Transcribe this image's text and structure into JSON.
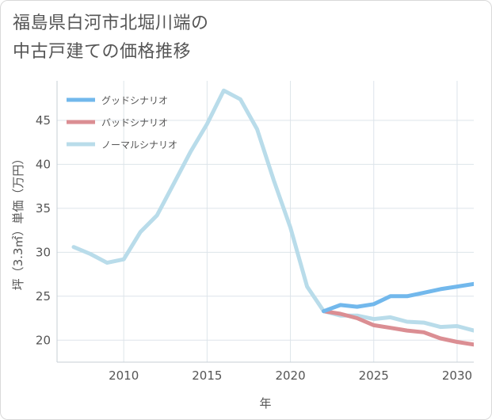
{
  "title_lines": [
    "福島県白河市北堀川端の",
    "中古戸建ての価格推移"
  ],
  "chart_data": {
    "type": "line",
    "xlabel": "年",
    "ylabel": "坪（3.3㎡）単価（万円）",
    "xlim": [
      2006,
      2031
    ],
    "ylim": [
      17.5,
      49.5
    ],
    "x_ticks": [
      2010,
      2015,
      2020,
      2025,
      2030
    ],
    "y_ticks": [
      20,
      25,
      30,
      35,
      40,
      45
    ],
    "grid": true,
    "legend_position": "top-left",
    "series": [
      {
        "name": "グッドシナリオ",
        "color": "#72b8ec",
        "x": [
          2022,
          2023,
          2024,
          2025,
          2026,
          2027,
          2028,
          2029,
          2030,
          2031
        ],
        "y": [
          23.3,
          24.0,
          23.8,
          24.1,
          25.0,
          25.0,
          25.4,
          25.8,
          26.1,
          26.4
        ]
      },
      {
        "name": "バッドシナリオ",
        "color": "#db8e93",
        "x": [
          2022,
          2023,
          2024,
          2025,
          2026,
          2027,
          2028,
          2029,
          2030,
          2031
        ],
        "y": [
          23.3,
          23.0,
          22.5,
          21.7,
          21.4,
          21.1,
          20.9,
          20.2,
          19.8,
          19.5
        ]
      },
      {
        "name": "ノーマルシナリオ",
        "color": "#b9dcea",
        "x": [
          2007,
          2008,
          2009,
          2010,
          2011,
          2012,
          2013,
          2014,
          2015,
          2016,
          2017,
          2018,
          2019,
          2020,
          2021,
          2022,
          2023,
          2024,
          2025,
          2026,
          2027,
          2028,
          2029,
          2030,
          2031
        ],
        "y": [
          30.6,
          29.8,
          28.8,
          29.2,
          32.3,
          34.2,
          37.8,
          41.4,
          44.6,
          48.4,
          47.4,
          44.0,
          38.2,
          32.8,
          26.1,
          23.3,
          22.8,
          22.8,
          22.4,
          22.6,
          22.1,
          22.0,
          21.5,
          21.6,
          21.1
        ]
      }
    ]
  }
}
